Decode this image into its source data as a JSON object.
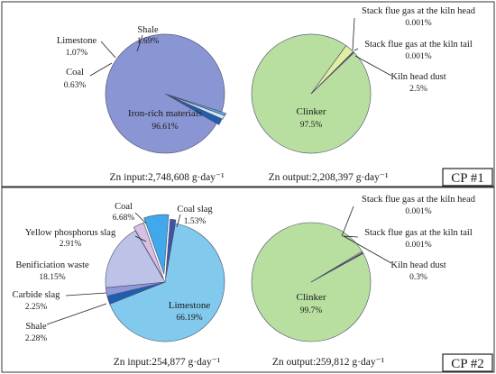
{
  "panels": [
    {
      "label": "CP #1"
    },
    {
      "label": "CP #2"
    }
  ],
  "chart_data": [
    {
      "type": "pie",
      "title": "Zn input:2,748,608 g·day⁻¹",
      "slices": [
        {
          "label": "Iron-rich materials",
          "value_text": "96.61%",
          "value": 96.61,
          "color": "#8a95d3"
        },
        {
          "label": "Coal",
          "value_text": "0.63%",
          "value": 0.63,
          "color": "#5aaee8"
        },
        {
          "label": "Limestone",
          "value_text": "1.07%",
          "value": 1.07,
          "color": "#cfe8f5"
        },
        {
          "label": "Shale",
          "value_text": "1.69%",
          "value": 1.69,
          "color": "#1e5fb0"
        }
      ]
    },
    {
      "type": "pie",
      "title": "Zn output:2,208,397 g·day⁻¹",
      "slices": [
        {
          "label": "Clinker",
          "value_text": "97.5%",
          "value": 97.5,
          "color": "#b8dfa0"
        },
        {
          "label": "Kiln head dust",
          "value_text": "2.5%",
          "value": 2.5,
          "color": "#e2eea0"
        },
        {
          "label": "Stack flue gas at the kiln tail",
          "value_text": "0.001%",
          "value": 0.001,
          "color": "#7fb55f"
        },
        {
          "label": "Stack flue gas at the kiln head",
          "value_text": "0.001%",
          "value": 0.001,
          "color": "#6aa24b"
        }
      ]
    },
    {
      "type": "pie",
      "title": "Zn input:254,877 g·day⁻¹",
      "slices": [
        {
          "label": "Limestone",
          "value_text": "66.19%",
          "value": 66.19,
          "color": "#82c9ee"
        },
        {
          "label": "Shale",
          "value_text": "2.28%",
          "value": 2.28,
          "color": "#1e5fb0"
        },
        {
          "label": "Carbide slag",
          "value_text": "2.25%",
          "value": 2.25,
          "color": "#8f98d8"
        },
        {
          "label": "Benificiation waste",
          "value_text": "18.15%",
          "value": 18.15,
          "color": "#bdc3e6"
        },
        {
          "label": "Yellow phosphorus slag",
          "value_text": "2.91%",
          "value": 2.91,
          "color": "#d8bfe4"
        },
        {
          "label": "Coal",
          "value_text": "6.68%",
          "value": 6.68,
          "color": "#41a8ec"
        },
        {
          "label": "Coal slag",
          "value_text": "1.53%",
          "value": 1.53,
          "color": "#3b55a8"
        }
      ]
    },
    {
      "type": "pie",
      "title": "Zn output:259,812 g·day⁻¹",
      "slices": [
        {
          "label": "Clinker",
          "value_text": "99.7%",
          "value": 99.7,
          "color": "#b8dfa0"
        },
        {
          "label": "Kiln head dust",
          "value_text": "0.3%",
          "value": 0.3,
          "color": "#e2eea0"
        },
        {
          "label": "Stack flue gas at the kiln tail",
          "value_text": "0.001%",
          "value": 0.001,
          "color": "#7fb55f"
        },
        {
          "label": "Stack flue gas at the kiln head",
          "value_text": "0.001%",
          "value": 0.001,
          "color": "#6aa24b"
        }
      ]
    }
  ]
}
